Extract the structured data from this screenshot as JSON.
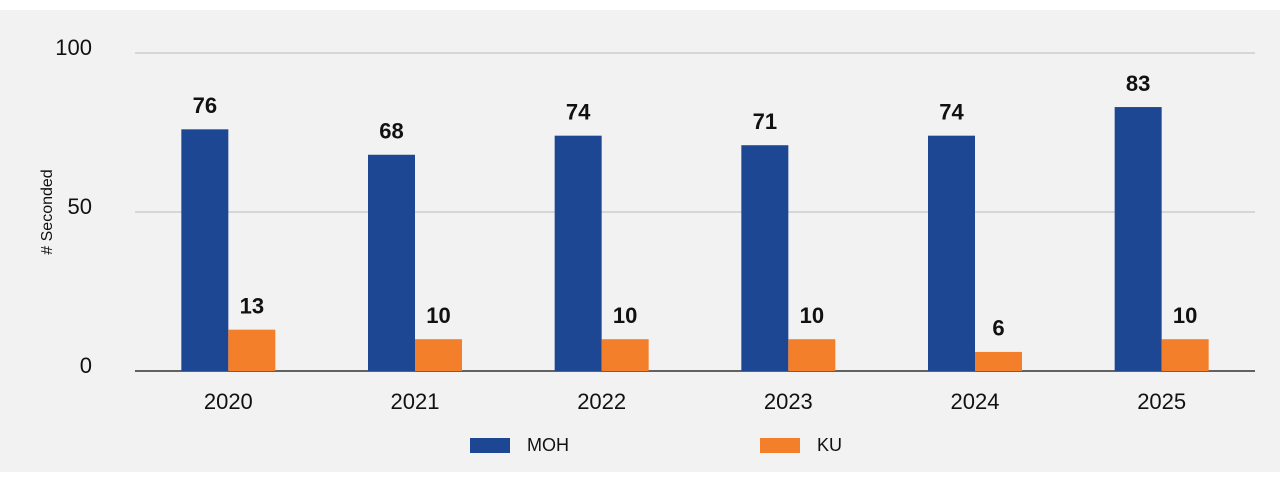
{
  "chart_data": {
    "type": "bar",
    "y_label": "# Seconded",
    "categories": [
      "2020",
      "2021",
      "2022",
      "2023",
      "2024",
      "2025"
    ],
    "series": [
      {
        "name": "MOH",
        "color": "#1d4793",
        "values": [
          76,
          68,
          74,
          71,
          74,
          83
        ]
      },
      {
        "name": "KU",
        "color": "#f47f2a",
        "values": [
          13,
          10,
          10,
          10,
          6,
          10
        ]
      }
    ],
    "ylim": [
      0,
      100
    ],
    "yticks": [
      0,
      50,
      100
    ],
    "grid": true,
    "legend": "bottom"
  }
}
